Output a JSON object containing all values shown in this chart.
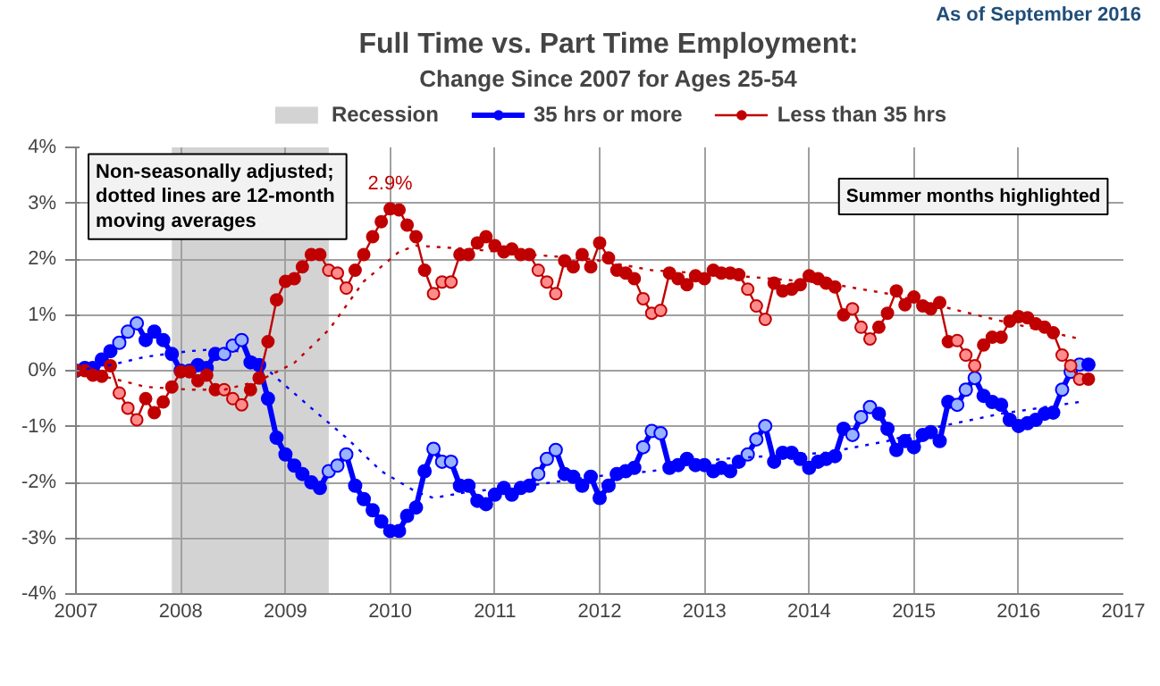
{
  "chart_data": {
    "type": "line",
    "title": "Full Time vs. Part Time Employment:",
    "subtitle": "Change Since 2007 for Ages 25-54",
    "annotations": [
      "As of September 2016",
      "Non-seasonally  adjusted;\ndotted lines are 12-month\nmoving averages",
      "Summer months highlighted",
      {
        "text": "2.9%",
        "x": "2010-01",
        "y": 2.9
      }
    ],
    "x": [
      "2007-01",
      "2007-02",
      "2007-03",
      "2007-04",
      "2007-05",
      "2007-06",
      "2007-07",
      "2007-08",
      "2007-09",
      "2007-10",
      "2007-11",
      "2007-12",
      "2008-01",
      "2008-02",
      "2008-03",
      "2008-04",
      "2008-05",
      "2008-06",
      "2008-07",
      "2008-08",
      "2008-09",
      "2008-10",
      "2008-11",
      "2008-12",
      "2009-01",
      "2009-02",
      "2009-03",
      "2009-04",
      "2009-05",
      "2009-06",
      "2009-07",
      "2009-08",
      "2009-09",
      "2009-10",
      "2009-11",
      "2009-12",
      "2010-01",
      "2010-02",
      "2010-03",
      "2010-04",
      "2010-05",
      "2010-06",
      "2010-07",
      "2010-08",
      "2010-09",
      "2010-10",
      "2010-11",
      "2010-12",
      "2011-01",
      "2011-02",
      "2011-03",
      "2011-04",
      "2011-05",
      "2011-06",
      "2011-07",
      "2011-08",
      "2011-09",
      "2011-10",
      "2011-11",
      "2011-12",
      "2012-01",
      "2012-02",
      "2012-03",
      "2012-04",
      "2012-05",
      "2012-06",
      "2012-07",
      "2012-08",
      "2012-09",
      "2012-10",
      "2012-11",
      "2012-12",
      "2013-01",
      "2013-02",
      "2013-03",
      "2013-04",
      "2013-05",
      "2013-06",
      "2013-07",
      "2013-08",
      "2013-09",
      "2013-10",
      "2013-11",
      "2013-12",
      "2014-01",
      "2014-02",
      "2014-03",
      "2014-04",
      "2014-05",
      "2014-06",
      "2014-07",
      "2014-08",
      "2014-09",
      "2014-10",
      "2014-11",
      "2014-12",
      "2015-01",
      "2015-02",
      "2015-03",
      "2015-04",
      "2015-05",
      "2015-06",
      "2015-07",
      "2015-08",
      "2015-09",
      "2015-10",
      "2015-11",
      "2015-12",
      "2016-01",
      "2016-02",
      "2016-03",
      "2016-04",
      "2016-05",
      "2016-06",
      "2016-07",
      "2016-08",
      "2016-09"
    ],
    "series": [
      {
        "name": "35 hrs or more",
        "color": "#0000ff",
        "line_style": "solid",
        "marker": "circle",
        "values": [
          0,
          0.05,
          0.05,
          0.2,
          0.35,
          0.5,
          0.7,
          0.85,
          0.55,
          0.7,
          0.55,
          0.3,
          0,
          0,
          0.1,
          0.05,
          0.3,
          0.3,
          0.45,
          0.55,
          0.15,
          0.1,
          -0.5,
          -1.2,
          -1.5,
          -1.7,
          -1.85,
          -2,
          -2.1,
          -1.8,
          -1.7,
          -1.5,
          -2.06,
          -2.3,
          -2.5,
          -2.7,
          -2.87,
          -2.87,
          -2.6,
          -2.45,
          -1.8,
          -1.4,
          -1.63,
          -1.63,
          -2.06,
          -2.06,
          -2.33,
          -2.39,
          -2.22,
          -2.1,
          -2.22,
          -2.1,
          -2.06,
          -1.85,
          -1.58,
          -1.42,
          -1.85,
          -1.9,
          -2.06,
          -1.9,
          -2.28,
          -2.06,
          -1.85,
          -1.8,
          -1.74,
          -1.37,
          -1.08,
          -1.12,
          -1.74,
          -1.69,
          -1.58,
          -1.69,
          -1.69,
          -1.8,
          -1.74,
          -1.8,
          -1.63,
          -1.5,
          -1.23,
          -0.99,
          -1.63,
          -1.47,
          -1.47,
          -1.58,
          -1.74,
          -1.63,
          -1.58,
          -1.53,
          -1.04,
          -1.15,
          -0.83,
          -0.65,
          -0.77,
          -1.04,
          -1.42,
          -1.26,
          -1.37,
          -1.15,
          -1.1,
          -1.26,
          -0.56,
          -0.61,
          -0.34,
          -0.13,
          -0.45,
          -0.56,
          -0.61,
          -0.88,
          -0.99,
          -0.94,
          -0.88,
          -0.77,
          -0.75,
          -0.34,
          -0.02,
          0.11,
          0.11
        ],
        "colors": [
          "#0000ff",
          "#0000ff",
          "#0000ff",
          "#0000ff",
          "#0000ff",
          "#99b3ff",
          "#99b3ff",
          "#99b3ff",
          "#0000ff",
          "#0000ff",
          "#0000ff",
          "#0000ff",
          "#0000ff",
          "#0000ff",
          "#0000ff",
          "#0000ff",
          "#0000ff",
          "#99b3ff",
          "#99b3ff",
          "#99b3ff",
          "#0000ff",
          "#0000ff",
          "#0000ff",
          "#0000ff",
          "#0000ff",
          "#0000ff",
          "#0000ff",
          "#0000ff",
          "#0000ff",
          "#99b3ff",
          "#99b3ff",
          "#99b3ff",
          "#0000ff",
          "#0000ff",
          "#0000ff",
          "#0000ff",
          "#0000ff",
          "#0000ff",
          "#0000ff",
          "#0000ff",
          "#0000ff",
          "#99b3ff",
          "#99b3ff",
          "#99b3ff",
          "#0000ff",
          "#0000ff",
          "#0000ff",
          "#0000ff",
          "#0000ff",
          "#0000ff",
          "#0000ff",
          "#0000ff",
          "#0000ff",
          "#99b3ff",
          "#99b3ff",
          "#99b3ff",
          "#0000ff",
          "#0000ff",
          "#0000ff",
          "#0000ff",
          "#0000ff",
          "#0000ff",
          "#0000ff",
          "#0000ff",
          "#0000ff",
          "#99b3ff",
          "#99b3ff",
          "#99b3ff",
          "#0000ff",
          "#0000ff",
          "#0000ff",
          "#0000ff",
          "#0000ff",
          "#0000ff",
          "#0000ff",
          "#0000ff",
          "#0000ff",
          "#99b3ff",
          "#99b3ff",
          "#99b3ff",
          "#0000ff",
          "#0000ff",
          "#0000ff",
          "#0000ff",
          "#0000ff",
          "#0000ff",
          "#0000ff",
          "#0000ff",
          "#0000ff",
          "#99b3ff",
          "#99b3ff",
          "#99b3ff",
          "#0000ff",
          "#0000ff",
          "#0000ff",
          "#0000ff",
          "#0000ff",
          "#0000ff",
          "#0000ff",
          "#0000ff",
          "#0000ff",
          "#99b3ff",
          "#99b3ff",
          "#99b3ff",
          "#0000ff",
          "#0000ff",
          "#0000ff",
          "#0000ff",
          "#0000ff",
          "#0000ff",
          "#0000ff",
          "#0000ff",
          "#0000ff",
          "#99b3ff",
          "#99b3ff",
          "#99b3ff",
          "#0000ff"
        ]
      },
      {
        "name": "Less than 35 hrs",
        "color": "#c00000",
        "line_style": "solid",
        "marker": "circle",
        "values": [
          0,
          0,
          -0.08,
          -0.1,
          0.09,
          -0.4,
          -0.67,
          -0.88,
          -0.5,
          -0.75,
          -0.56,
          -0.29,
          -0.02,
          -0.02,
          -0.18,
          -0.08,
          -0.34,
          -0.34,
          -0.5,
          -0.61,
          -0.34,
          -0.13,
          0.52,
          1.27,
          1.6,
          1.65,
          1.86,
          2.08,
          2.08,
          1.8,
          1.75,
          1.48,
          1.8,
          2.08,
          2.4,
          2.67,
          2.9,
          2.88,
          2.61,
          2.4,
          1.8,
          1.38,
          1.59,
          1.59,
          2.08,
          2.08,
          2.29,
          2.4,
          2.24,
          2.13,
          2.18,
          2.08,
          2.08,
          1.8,
          1.59,
          1.38,
          1.97,
          1.86,
          2.08,
          1.86,
          2.29,
          2.02,
          1.8,
          1.75,
          1.65,
          1.29,
          1.03,
          1.08,
          1.75,
          1.65,
          1.54,
          1.7,
          1.65,
          1.8,
          1.75,
          1.75,
          1.72,
          1.46,
          1.16,
          0.92,
          1.57,
          1.43,
          1.46,
          1.54,
          1.7,
          1.65,
          1.57,
          1.5,
          1.0,
          1.11,
          0.78,
          0.57,
          0.78,
          1.03,
          1.43,
          1.18,
          1.32,
          1.16,
          1.11,
          1.22,
          0.52,
          0.54,
          0.28,
          0.09,
          0.46,
          0.6,
          0.6,
          0.89,
          0.97,
          0.95,
          0.84,
          0.78,
          0.68,
          0.28,
          0.09,
          -0.15,
          -0.15
        ],
        "colors": [
          "#c00000",
          "#c00000",
          "#c00000",
          "#c00000",
          "#c00000",
          "#ff8c8c",
          "#ff8c8c",
          "#ff8c8c",
          "#c00000",
          "#c00000",
          "#c00000",
          "#c00000",
          "#c00000",
          "#c00000",
          "#c00000",
          "#c00000",
          "#c00000",
          "#ff8c8c",
          "#ff8c8c",
          "#ff8c8c",
          "#c00000",
          "#c00000",
          "#c00000",
          "#c00000",
          "#c00000",
          "#c00000",
          "#c00000",
          "#c00000",
          "#c00000",
          "#ff8c8c",
          "#ff8c8c",
          "#ff8c8c",
          "#c00000",
          "#c00000",
          "#c00000",
          "#c00000",
          "#c00000",
          "#c00000",
          "#c00000",
          "#c00000",
          "#c00000",
          "#ff8c8c",
          "#ff8c8c",
          "#ff8c8c",
          "#c00000",
          "#c00000",
          "#c00000",
          "#c00000",
          "#c00000",
          "#c00000",
          "#c00000",
          "#c00000",
          "#c00000",
          "#ff8c8c",
          "#ff8c8c",
          "#ff8c8c",
          "#c00000",
          "#c00000",
          "#c00000",
          "#c00000",
          "#c00000",
          "#c00000",
          "#c00000",
          "#c00000",
          "#c00000",
          "#ff8c8c",
          "#ff8c8c",
          "#ff8c8c",
          "#c00000",
          "#c00000",
          "#c00000",
          "#c00000",
          "#c00000",
          "#c00000",
          "#c00000",
          "#c00000",
          "#c00000",
          "#ff8c8c",
          "#ff8c8c",
          "#ff8c8c",
          "#c00000",
          "#c00000",
          "#c00000",
          "#c00000",
          "#c00000",
          "#c00000",
          "#c00000",
          "#c00000",
          "#c00000",
          "#ff8c8c",
          "#ff8c8c",
          "#ff8c8c",
          "#c00000",
          "#c00000",
          "#c00000",
          "#c00000",
          "#c00000",
          "#c00000",
          "#c00000",
          "#c00000",
          "#c00000",
          "#ff8c8c",
          "#ff8c8c",
          "#ff8c8c",
          "#c00000",
          "#c00000",
          "#c00000",
          "#c00000",
          "#c00000",
          "#c00000",
          "#c00000",
          "#c00000",
          "#c00000",
          "#ff8c8c",
          "#ff8c8c",
          "#ff8c8c",
          "#c00000"
        ]
      },
      {
        "color": "#0000ff",
        "line_style": "dotted",
        "marker": "none",
        "x": [
          "2007-01",
          "2007-05",
          "2007-09",
          "2008-02",
          "2008-06",
          "2008-09",
          "2008-12",
          "2009-04",
          "2009-08",
          "2009-12",
          "2010-04",
          "2010-06",
          "2010-10",
          "2011-05",
          "2011-12",
          "2012-07",
          "2013-03",
          "2014-03",
          "2014-10",
          "2015-04",
          "2015-11",
          "2016-08"
        ],
        "values": [
          0,
          0.1,
          0.25,
          0.35,
          0.4,
          0.3,
          -0.13,
          -0.67,
          -1.2,
          -1.8,
          -2.17,
          -2.28,
          -2.17,
          -2.06,
          -1.9,
          -1.8,
          -1.58,
          -1.47,
          -1.26,
          -1.0,
          -0.77,
          -0.56
        ]
      },
      {
        "color": "#c00000",
        "line_style": "dotted",
        "marker": "none",
        "x": [
          "2007-01",
          "2007-05",
          "2007-09",
          "2008-02",
          "2008-06",
          "2008-10",
          "2009-02",
          "2009-06",
          "2009-10",
          "2010-02",
          "2010-04",
          "2010-10",
          "2011-05",
          "2011-12",
          "2012-07",
          "2013-03",
          "2014-03",
          "2014-10",
          "2015-04",
          "2015-11",
          "2016-08"
        ],
        "values": [
          0,
          -0.13,
          -0.29,
          -0.34,
          -0.34,
          -0.18,
          0.14,
          0.73,
          1.6,
          2.13,
          2.24,
          2.18,
          2.08,
          2.0,
          1.8,
          1.72,
          1.57,
          1.38,
          1.16,
          0.89,
          0.57
        ]
      }
    ],
    "bands": [
      {
        "axis": "x",
        "from": "2007-12",
        "to": "2009-06",
        "label": "Recession",
        "color": "#d3d3d3"
      }
    ],
    "xlim": [
      "2007",
      "2017"
    ],
    "xticks": [
      "2007",
      "2008",
      "2009",
      "2010",
      "2011",
      "2012",
      "2013",
      "2014",
      "2015",
      "2016",
      "2017"
    ],
    "ylim": [
      -4,
      4
    ],
    "yticks": [
      {
        "value": -4,
        "label": "-4%"
      },
      {
        "value": -3,
        "label": "-3%"
      },
      {
        "value": -2,
        "label": "-2%"
      },
      {
        "value": -1,
        "label": "-1%"
      },
      {
        "value": 0,
        "label": "0%"
      },
      {
        "value": 1,
        "label": "1%"
      },
      {
        "value": 2,
        "label": "2%"
      },
      {
        "value": 3,
        "label": "3%"
      },
      {
        "value": 4,
        "label": "4%"
      }
    ],
    "grid": true,
    "legend": "top"
  }
}
